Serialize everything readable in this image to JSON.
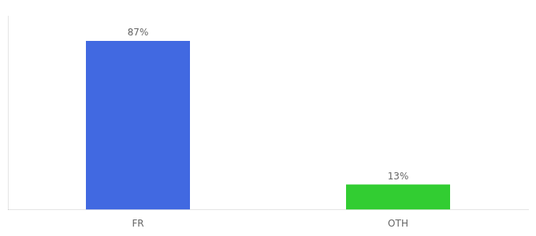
{
  "chart_data": {
    "type": "bar",
    "categories": [
      "FR",
      "OTH"
    ],
    "values": [
      87,
      13
    ],
    "value_labels": [
      "87%",
      "13%"
    ],
    "colors": [
      "#4169e1",
      "#32cd32"
    ],
    "ylim": [
      0,
      100
    ],
    "data_labels": true,
    "tick_labels": "x",
    "grid": false
  }
}
